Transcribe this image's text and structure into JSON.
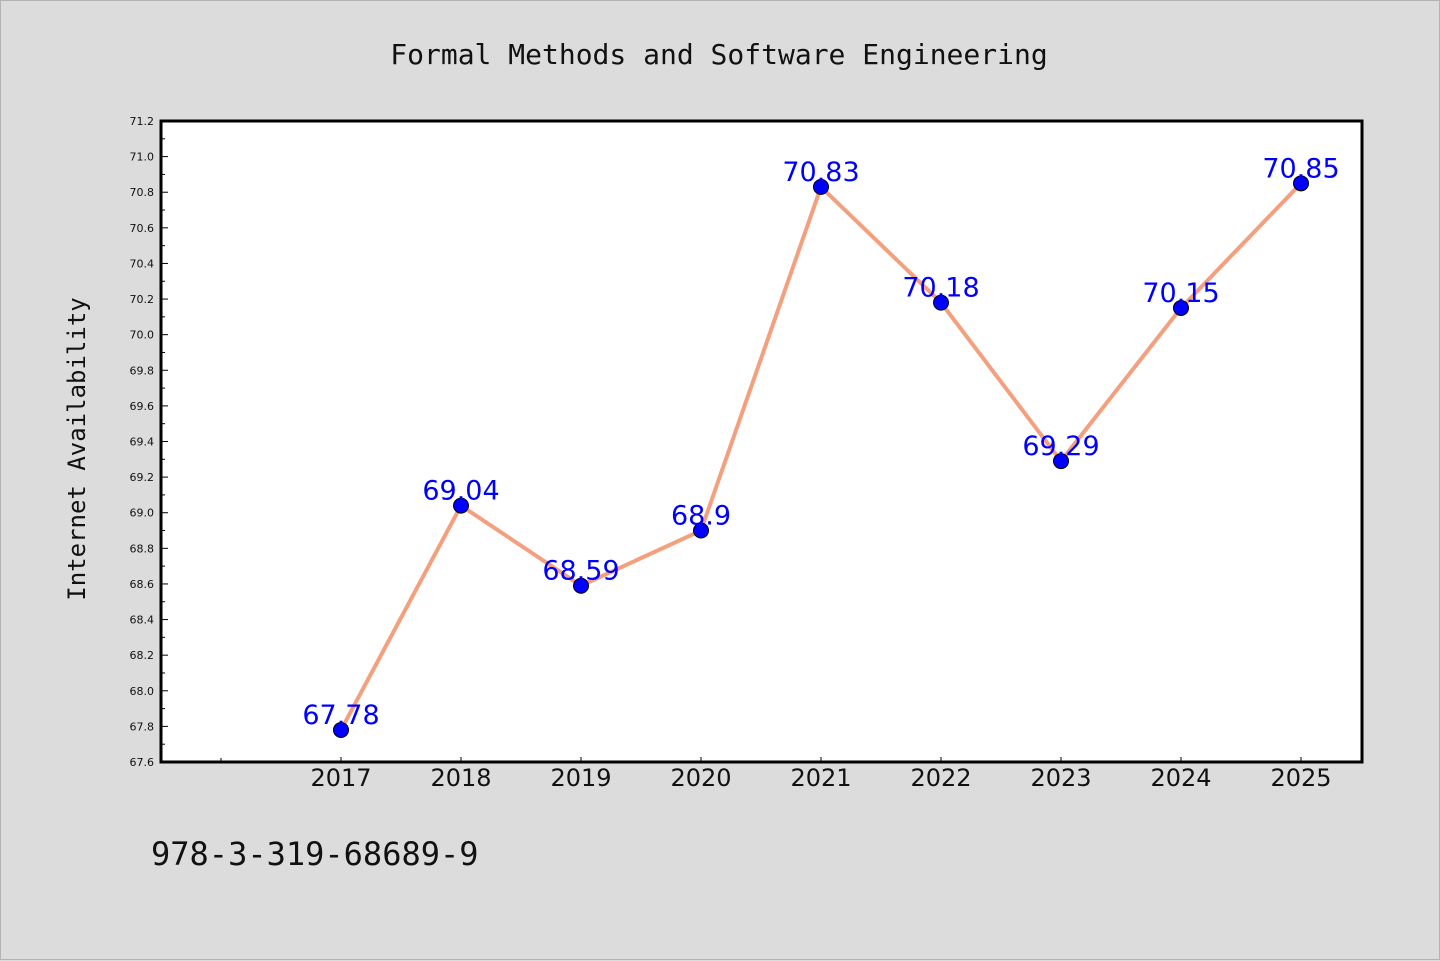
{
  "colors": {
    "background": "#dcdcdc",
    "plot_area": "#ffffff",
    "line": "#f4a07e",
    "marker": "#0000ff",
    "data_label": "#0000ff",
    "text": "#111111"
  },
  "caption": "978-3-319-68689-9",
  "chart_data": {
    "type": "line",
    "title": "Formal Methods and Software Engineering",
    "xlabel": "",
    "ylabel": "Internet Availability",
    "categories": [
      "2017",
      "2018",
      "2019",
      "2020",
      "2021",
      "2022",
      "2023",
      "2024",
      "2025"
    ],
    "series": [
      {
        "values": [
          67.78,
          69.04,
          68.59,
          68.9,
          70.83,
          70.18,
          69.29,
          70.15,
          70.85
        ],
        "labels": [
          "67.78",
          "69.04",
          "68.59",
          "68.9",
          "70.83",
          "70.18",
          "69.29",
          "70.15",
          "70.85"
        ]
      }
    ],
    "ylim": [
      67.6,
      71.2
    ],
    "y_ticks": [
      "67.6",
      "67.8",
      "68.0",
      "68.2",
      "68.4",
      "68.6",
      "68.8",
      "69.0",
      "69.2",
      "69.4",
      "69.6",
      "69.8",
      "70.0",
      "70.2",
      "70.4",
      "70.6",
      "70.8",
      "71.0",
      "71.2"
    ],
    "grid": false,
    "legend": "none",
    "marker": "circle"
  }
}
